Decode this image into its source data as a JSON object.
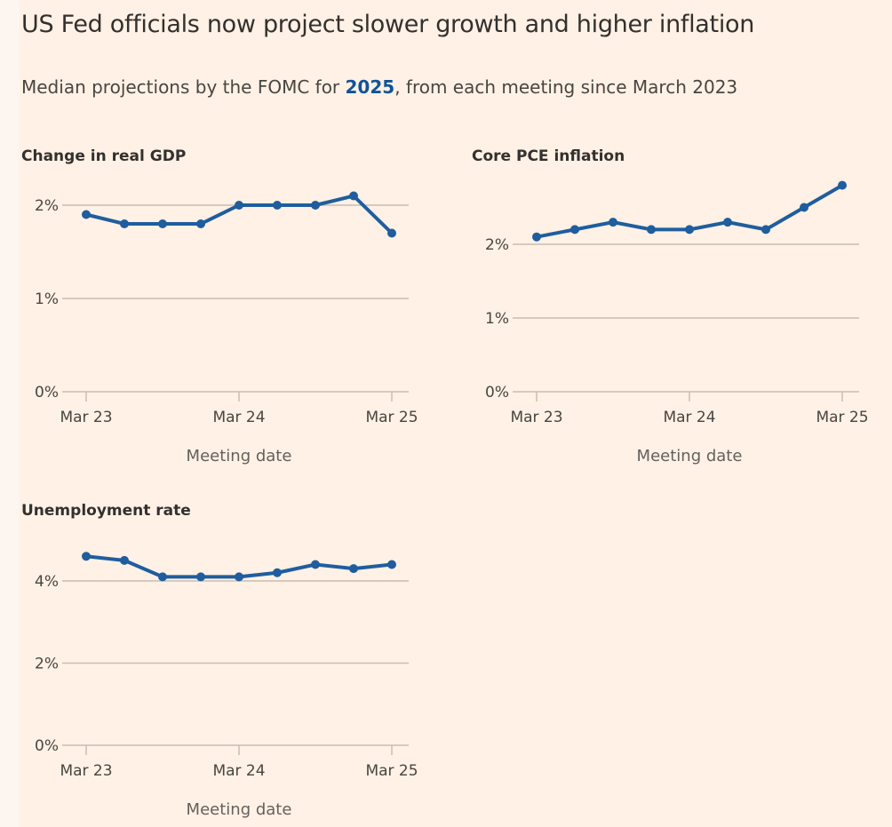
{
  "header": {
    "title": "US Fed officials now project slower growth and higher inflation",
    "subtitle_pre": "Median projections by the FOMC for ",
    "subtitle_highlight": "2025",
    "subtitle_post": ", from each meeting since March 2023"
  },
  "colors": {
    "line": "#1f5d9e",
    "grid": "#c9beb3",
    "background": "#fff1e5",
    "highlight": "#0f5499"
  },
  "chart_data": [
    {
      "type": "line",
      "title": "Change in real GDP",
      "xlabel": "Meeting date",
      "ylabel": "",
      "x_ticks": [
        "Mar 23",
        "Mar 24",
        "Mar 25"
      ],
      "y_ticks": [
        "0%",
        "1%",
        "2%"
      ],
      "y_tick_values": [
        0,
        1,
        2
      ],
      "ylim": [
        0,
        2.1
      ],
      "values": [
        1.9,
        1.8,
        1.8,
        1.8,
        2.0,
        2.0,
        2.0,
        2.1,
        1.7
      ],
      "grid": true
    },
    {
      "type": "line",
      "title": "Core PCE inflation",
      "xlabel": "Meeting date",
      "ylabel": "",
      "x_ticks": [
        "Mar 23",
        "Mar 24",
        "Mar 25"
      ],
      "y_ticks": [
        "0%",
        "1%",
        "2%"
      ],
      "y_tick_values": [
        0,
        1,
        2
      ],
      "ylim": [
        0,
        2.8
      ],
      "values": [
        2.1,
        2.2,
        2.3,
        2.2,
        2.2,
        2.3,
        2.2,
        2.5,
        2.8
      ],
      "grid": true
    },
    {
      "type": "line",
      "title": "Unemployment rate",
      "xlabel": "Meeting date",
      "ylabel": "",
      "x_ticks": [
        "Mar 23",
        "Mar 24",
        "Mar 25"
      ],
      "y_ticks": [
        "0%",
        "2%",
        "4%"
      ],
      "y_tick_values": [
        0,
        2,
        4
      ],
      "ylim": [
        0,
        4.6
      ],
      "values": [
        4.6,
        4.5,
        4.1,
        4.1,
        4.1,
        4.2,
        4.4,
        4.3,
        4.4
      ],
      "grid": true
    }
  ]
}
